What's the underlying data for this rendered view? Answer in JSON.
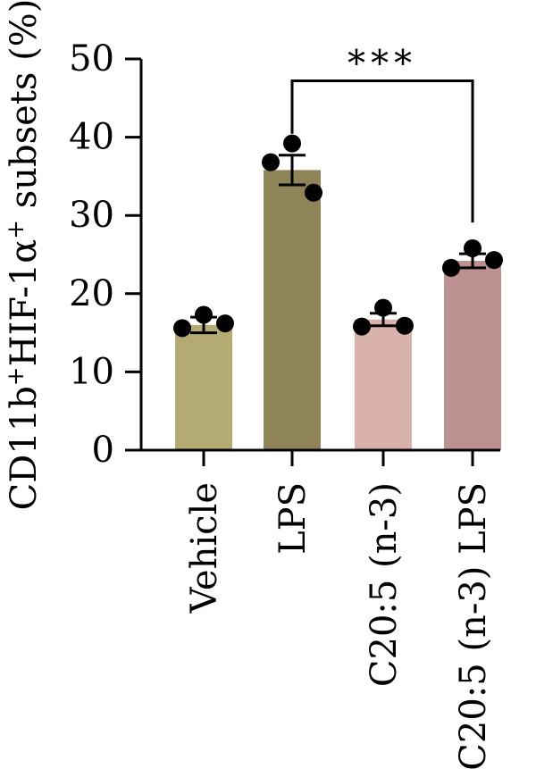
{
  "chart_data": {
    "type": "bar",
    "ylabel_parts": {
      "a": "CD11b",
      "a_sup": "+",
      "b": "HIF-1α",
      "b_sup": "+",
      "c": " subsets (%)"
    },
    "ylim": [
      0,
      50
    ],
    "yticks": [
      0,
      10,
      20,
      30,
      40,
      50
    ],
    "ytick_labels": [
      "0",
      "10",
      "20",
      "30",
      "40",
      "50"
    ],
    "categories": [
      "Vehicle",
      "LPS",
      "C20:5 (n-3)",
      "C20:5 (n-3) LPS"
    ],
    "values": [
      16.0,
      35.8,
      16.7,
      24.2
    ],
    "sem": [
      1.0,
      1.9,
      0.8,
      0.9
    ],
    "points": [
      [
        17.3,
        15.6,
        16.2
      ],
      [
        39.2,
        36.8,
        32.9
      ],
      [
        18.2,
        15.8,
        15.9
      ],
      [
        25.8,
        23.3,
        24.3
      ]
    ],
    "bar_colors": [
      "#b4ab73",
      "#8e8457",
      "#d9b2ac",
      "#bb9192"
    ],
    "annotation": {
      "text": "***",
      "from_category": 1,
      "to_category": 3,
      "y": 47.2
    },
    "grid": false,
    "legend": "none"
  }
}
